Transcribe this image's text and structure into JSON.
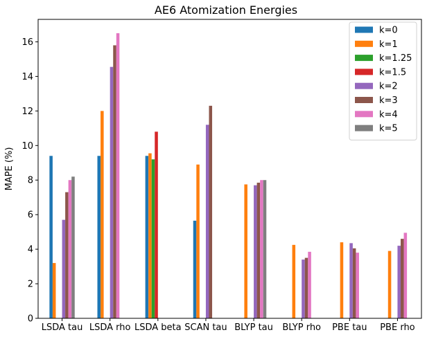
{
  "chart_data": {
    "type": "bar",
    "title": "AE6 Atomization Energies",
    "xlabel": "",
    "ylabel": "MAPE (%)",
    "ylim": [
      0,
      17.3
    ],
    "yticks": [
      0,
      2,
      4,
      6,
      8,
      10,
      12,
      14,
      16
    ],
    "grid": false,
    "legend_position": "top-right",
    "categories": [
      "LSDA tau",
      "LSDA rho",
      "LSDA beta",
      "SCAN tau",
      "BLYP tau",
      "BLYP rho",
      "PBE tau",
      "PBE rho"
    ],
    "series": [
      {
        "name": "k=0",
        "color": "#1f77b4",
        "values": [
          9.4,
          9.4,
          9.4,
          5.65,
          null,
          null,
          null,
          null
        ]
      },
      {
        "name": "k=1",
        "color": "#ff7f0e",
        "values": [
          3.2,
          12.0,
          9.55,
          8.9,
          7.75,
          4.25,
          4.4,
          3.9
        ]
      },
      {
        "name": "k=1.25",
        "color": "#2ca02c",
        "values": [
          null,
          null,
          9.2,
          null,
          null,
          null,
          null,
          null
        ]
      },
      {
        "name": "k=1.5",
        "color": "#d62728",
        "values": [
          null,
          null,
          10.8,
          null,
          null,
          null,
          null,
          null
        ]
      },
      {
        "name": "k=2",
        "color": "#9467bd",
        "values": [
          5.7,
          14.55,
          null,
          11.2,
          7.7,
          3.4,
          4.35,
          4.2
        ]
      },
      {
        "name": "k=3",
        "color": "#8c564b",
        "values": [
          7.3,
          15.8,
          null,
          12.3,
          7.85,
          3.5,
          4.05,
          4.6
        ]
      },
      {
        "name": "k=4",
        "color": "#e377c2",
        "values": [
          8.0,
          16.5,
          null,
          null,
          8.0,
          3.85,
          3.8,
          4.95
        ]
      },
      {
        "name": "k=5",
        "color": "#7f7f7f",
        "values": [
          8.2,
          null,
          null,
          null,
          8.0,
          null,
          null,
          null
        ]
      }
    ]
  }
}
